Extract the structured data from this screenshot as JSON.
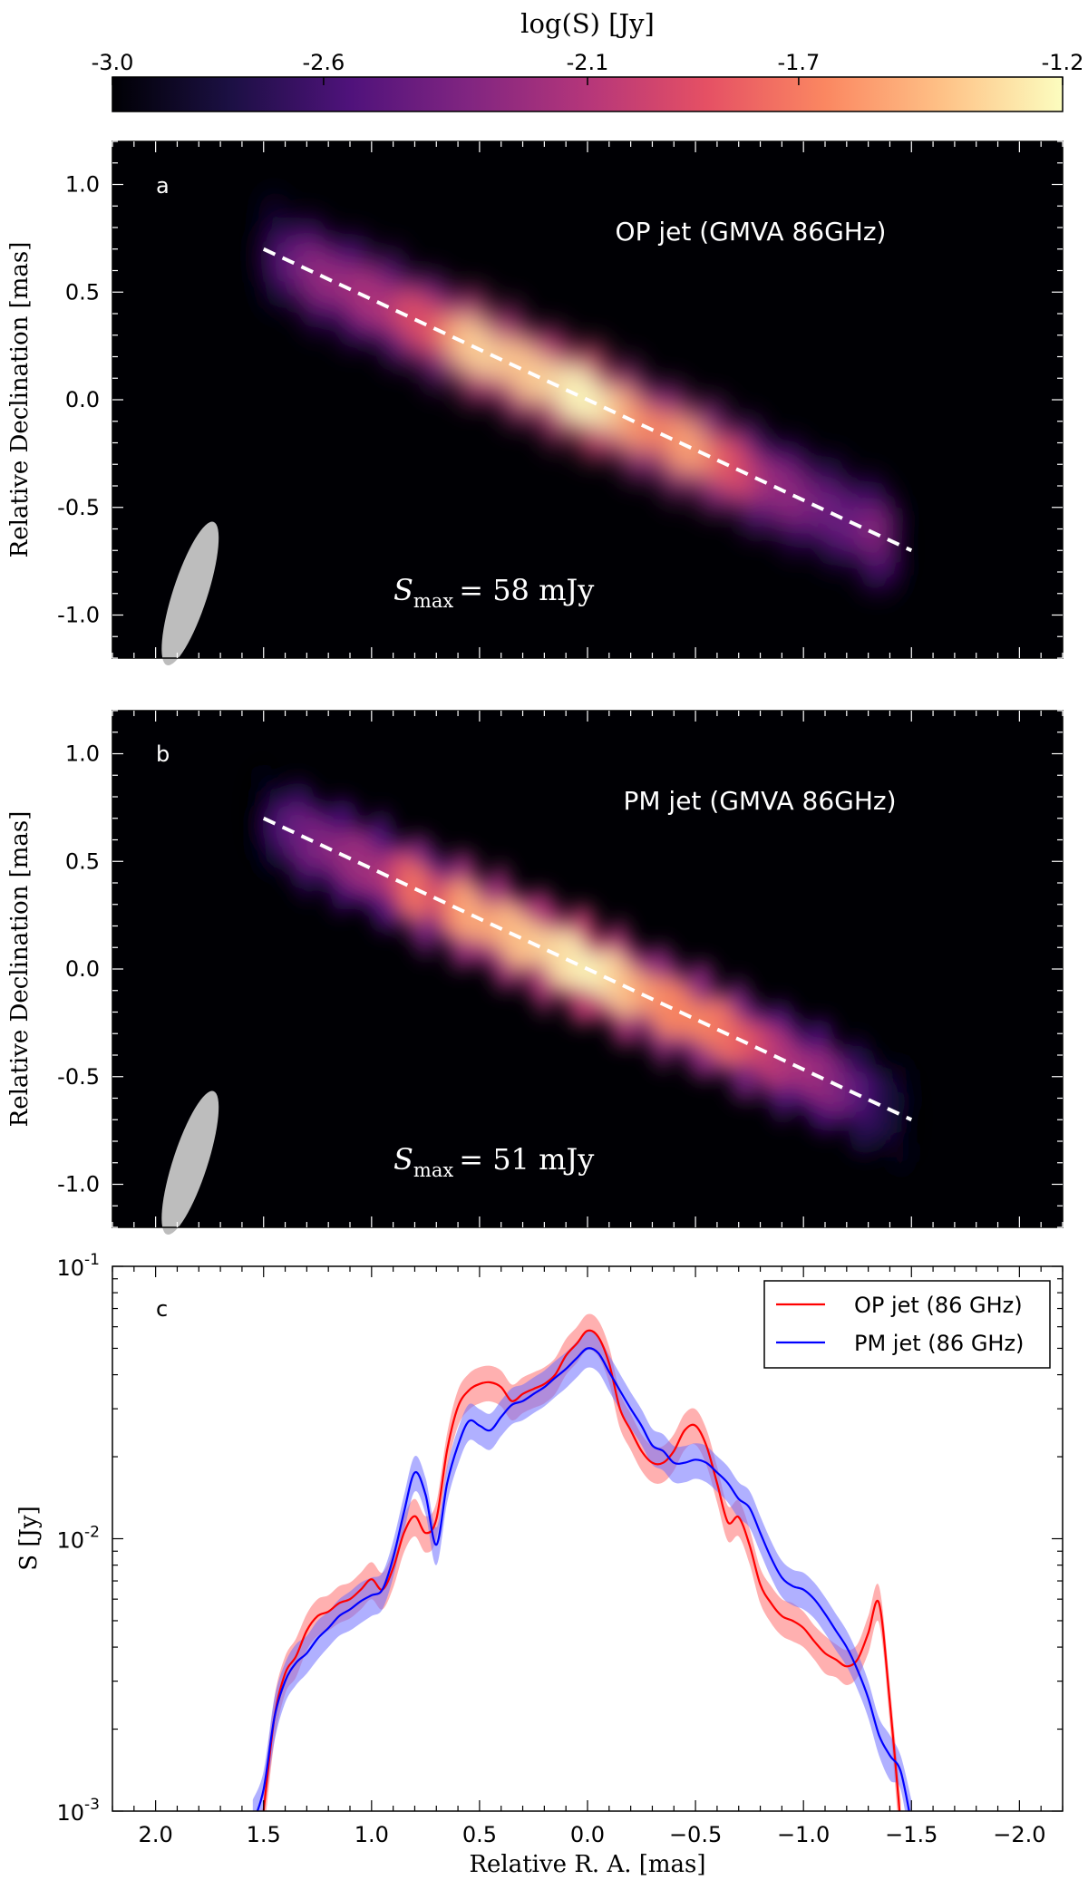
{
  "figure": {
    "colorbar": {
      "label": "log(S) [Jy]",
      "ticks": [
        "-3.0",
        "-2.6",
        "-2.1",
        "-1.7",
        "-1.2"
      ],
      "tick_values": [
        -3.0,
        -2.6,
        -2.1,
        -1.7,
        -1.2
      ],
      "range": [
        -3.0,
        -1.2
      ],
      "colormap": "magma",
      "colors": [
        "#000004",
        "#1c1044",
        "#4f127b",
        "#812581",
        "#b5367a",
        "#e55064",
        "#fb8761",
        "#fec287",
        "#fcfdbf"
      ]
    },
    "beam_color": "#bdbdbd",
    "ridge_line_color": "#ffffff"
  },
  "chart_data": [
    {
      "type": "heatmap",
      "panel": "a",
      "title": "OP jet (GMVA 86GHz)",
      "annotation_symbol": "S",
      "annotation_subscript": "max",
      "annotation_value": "= 58 mJy",
      "ylabel": "Relative Declination [mas]",
      "xlim": [
        2.2,
        -2.2
      ],
      "ylim": [
        -1.2,
        1.2
      ],
      "yticks": [
        "1.0",
        "0.5",
        "0.0",
        "-0.5",
        "-1.0"
      ],
      "ytick_values": [
        1.0,
        0.5,
        0.0,
        -0.5,
        -1.0
      ],
      "ridge_line": {
        "x": [
          1.5,
          -1.5
        ],
        "y": [
          0.7,
          -0.7
        ]
      },
      "beam": {
        "x": 1.84,
        "y": -0.9,
        "major": 0.35,
        "minor": 0.08
      }
    },
    {
      "type": "heatmap",
      "panel": "b",
      "title": "PM jet (GMVA 86GHz)",
      "annotation_symbol": "S",
      "annotation_subscript": "max",
      "annotation_value": "= 51 mJy",
      "ylabel": "Relative Declination [mas]",
      "xlim": [
        2.2,
        -2.2
      ],
      "ylim": [
        -1.2,
        1.2
      ],
      "yticks": [
        "1.0",
        "0.5",
        "0.0",
        "-0.5",
        "-1.0"
      ],
      "ytick_values": [
        1.0,
        0.5,
        0.0,
        -0.5,
        -1.0
      ],
      "ridge_line": {
        "x": [
          1.5,
          -1.5
        ],
        "y": [
          0.7,
          -0.7
        ]
      },
      "beam": {
        "x": 1.84,
        "y": -0.9,
        "major": 0.35,
        "minor": 0.08
      }
    },
    {
      "type": "line",
      "panel": "c",
      "xlabel": "Relative R. A. [mas]",
      "ylabel": "S [Jy]",
      "yscale": "log",
      "xlim": [
        2.2,
        -2.2
      ],
      "ylim": [
        0.001,
        0.1
      ],
      "xticks": [
        "2.0",
        "1.5",
        "1.0",
        "0.5",
        "0.0",
        "−0.5",
        "−1.0",
        "−1.5",
        "−2.0"
      ],
      "xtick_values": [
        2.0,
        1.5,
        1.0,
        0.5,
        0.0,
        -0.5,
        -1.0,
        -1.5,
        -2.0
      ],
      "yticks": [
        {
          "base": "10",
          "exp": "-1",
          "value": 0.1
        },
        {
          "base": "10",
          "exp": "-2",
          "value": 0.01
        },
        {
          "base": "10",
          "exp": "-3",
          "value": 0.001
        }
      ],
      "legend": "top-right",
      "series": [
        {
          "name": "OP jet (86 GHz)",
          "color": "#ff0000",
          "band_color": "#ff7070",
          "x": [
            1.5,
            1.45,
            1.4,
            1.35,
            1.3,
            1.25,
            1.2,
            1.15,
            1.1,
            1.05,
            1.0,
            0.95,
            0.9,
            0.85,
            0.8,
            0.75,
            0.7,
            0.65,
            0.6,
            0.55,
            0.5,
            0.45,
            0.4,
            0.35,
            0.3,
            0.25,
            0.2,
            0.15,
            0.1,
            0.05,
            0.0,
            -0.05,
            -0.1,
            -0.15,
            -0.2,
            -0.25,
            -0.3,
            -0.35,
            -0.4,
            -0.45,
            -0.5,
            -0.55,
            -0.6,
            -0.65,
            -0.7,
            -0.75,
            -0.8,
            -0.85,
            -0.9,
            -0.95,
            -1.0,
            -1.05,
            -1.1,
            -1.15,
            -1.2,
            -1.25,
            -1.3,
            -1.35,
            -1.4,
            -1.45
          ],
          "values": [
            0.001,
            0.0022,
            0.0032,
            0.0037,
            0.0046,
            0.0052,
            0.0054,
            0.0058,
            0.006,
            0.0065,
            0.0071,
            0.0065,
            0.0078,
            0.0105,
            0.0121,
            0.0105,
            0.0118,
            0.0212,
            0.0305,
            0.035,
            0.037,
            0.0375,
            0.036,
            0.032,
            0.034,
            0.0355,
            0.037,
            0.04,
            0.047,
            0.052,
            0.058,
            0.055,
            0.044,
            0.03,
            0.025,
            0.021,
            0.019,
            0.019,
            0.021,
            0.025,
            0.026,
            0.022,
            0.016,
            0.0115,
            0.012,
            0.0095,
            0.0068,
            0.0058,
            0.0052,
            0.005,
            0.0047,
            0.0042,
            0.0038,
            0.0036,
            0.0034,
            0.0036,
            0.0045,
            0.0058,
            0.0025,
            0.0009
          ],
          "errors": [
            0.0002,
            0.0004,
            0.0005,
            0.0006,
            0.0007,
            0.0008,
            0.0008,
            0.0009,
            0.0009,
            0.001,
            0.0011,
            0.001,
            0.0012,
            0.0016,
            0.0019,
            0.0016,
            0.0018,
            0.0032,
            0.0046,
            0.0053,
            0.0056,
            0.0056,
            0.0054,
            0.0048,
            0.0051,
            0.0053,
            0.0056,
            0.006,
            0.0071,
            0.0078,
            0.0087,
            0.0083,
            0.0066,
            0.0045,
            0.0038,
            0.0032,
            0.0029,
            0.0029,
            0.0032,
            0.0038,
            0.0039,
            0.0033,
            0.0024,
            0.0017,
            0.0018,
            0.0014,
            0.001,
            0.0009,
            0.0008,
            0.0008,
            0.0007,
            0.0006,
            0.0006,
            0.0005,
            0.0005,
            0.0005,
            0.0007,
            0.0009,
            0.0004,
            0.0002
          ]
        },
        {
          "name": "PM jet (86 GHz)",
          "color": "#0000ff",
          "band_color": "#7070ff",
          "x": [
            1.55,
            1.5,
            1.45,
            1.4,
            1.35,
            1.3,
            1.25,
            1.2,
            1.15,
            1.1,
            1.05,
            1.0,
            0.95,
            0.9,
            0.85,
            0.8,
            0.75,
            0.7,
            0.65,
            0.6,
            0.55,
            0.5,
            0.45,
            0.4,
            0.35,
            0.3,
            0.25,
            0.2,
            0.15,
            0.1,
            0.05,
            0.0,
            -0.05,
            -0.1,
            -0.15,
            -0.2,
            -0.25,
            -0.3,
            -0.35,
            -0.4,
            -0.45,
            -0.5,
            -0.55,
            -0.6,
            -0.65,
            -0.7,
            -0.75,
            -0.8,
            -0.85,
            -0.9,
            -0.95,
            -1.0,
            -1.05,
            -1.1,
            -1.15,
            -1.2,
            -1.25,
            -1.3,
            -1.35,
            -1.4,
            -1.45,
            -1.5
          ],
          "values": [
            0.0009,
            0.0012,
            0.0022,
            0.003,
            0.0035,
            0.0038,
            0.0043,
            0.0047,
            0.0052,
            0.0055,
            0.0059,
            0.0062,
            0.0065,
            0.0085,
            0.0125,
            0.0175,
            0.0145,
            0.0095,
            0.016,
            0.022,
            0.027,
            0.026,
            0.025,
            0.028,
            0.031,
            0.032,
            0.034,
            0.036,
            0.039,
            0.042,
            0.046,
            0.05,
            0.048,
            0.041,
            0.035,
            0.03,
            0.026,
            0.022,
            0.021,
            0.019,
            0.019,
            0.0195,
            0.019,
            0.0175,
            0.016,
            0.014,
            0.013,
            0.0105,
            0.0085,
            0.0072,
            0.0067,
            0.0065,
            0.006,
            0.0053,
            0.0046,
            0.004,
            0.0033,
            0.0026,
            0.0019,
            0.0016,
            0.0014,
            0.0009
          ],
          "errors": [
            0.0002,
            0.0002,
            0.0004,
            0.0005,
            0.0006,
            0.0006,
            0.0007,
            0.0007,
            0.0008,
            0.0009,
            0.001,
            0.001,
            0.001,
            0.0013,
            0.0019,
            0.0026,
            0.0022,
            0.0015,
            0.0024,
            0.0033,
            0.0041,
            0.0039,
            0.0038,
            0.0042,
            0.0047,
            0.0048,
            0.0051,
            0.0054,
            0.0059,
            0.0063,
            0.0069,
            0.0075,
            0.0072,
            0.0062,
            0.0053,
            0.0045,
            0.0039,
            0.0033,
            0.0032,
            0.0029,
            0.0029,
            0.0029,
            0.0029,
            0.0026,
            0.0024,
            0.0021,
            0.002,
            0.0016,
            0.0013,
            0.0011,
            0.001,
            0.001,
            0.0009,
            0.0008,
            0.0007,
            0.0006,
            0.0005,
            0.0004,
            0.0003,
            0.0003,
            0.0002,
            0.0002
          ]
        }
      ]
    }
  ]
}
